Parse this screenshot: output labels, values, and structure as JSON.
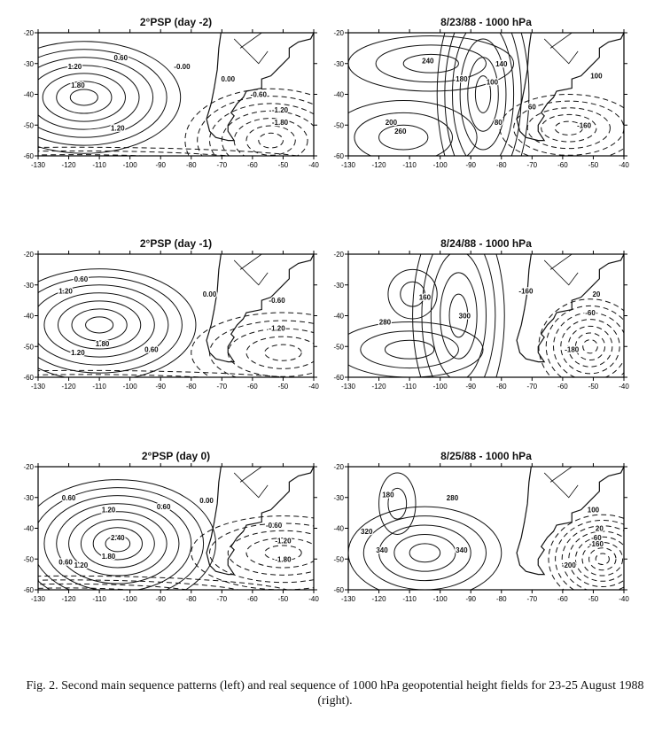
{
  "caption": "Fig. 2. Second main sequence patterns (left) and real sequence of 1000 hPa geopotential height fields for 23-25 August 1988 (right).",
  "chart_data": {
    "type": "contour-map",
    "xlim": [
      -130,
      -40
    ],
    "ylim": [
      -60,
      -20
    ],
    "xticks": [
      "-130",
      "-120",
      "-110",
      "-100",
      "-90",
      "-80",
      "-70",
      "-60",
      "-50",
      "-40"
    ],
    "yticks": [
      "-20",
      "-30",
      "-40",
      "-50",
      "-60"
    ],
    "panels": [
      {
        "title": "2°PSP (day -2)",
        "contours": [
          {
            "c": [
              -115,
              -41
            ],
            "n": 7,
            "d": [
              4.5,
              2.6
            ],
            "dashed": false
          },
          {
            "c": [
              -54,
              -55
            ],
            "n": 7,
            "d": [
              4,
              2.4
            ],
            "dashed": true
          },
          {
            "c": [
              -118,
              -62
            ],
            "n": 4,
            "d": [
              20,
              1.2
            ],
            "dashed": true
          }
        ],
        "labels": [
          {
            "t": "0.60",
            "at": [
              -103,
              -28
            ]
          },
          {
            "t": "1.20",
            "at": [
              -118,
              -31
            ]
          },
          {
            "t": "1.80",
            "at": [
              -117,
              -37
            ]
          },
          {
            "t": "1.20",
            "at": [
              -104,
              -51
            ]
          },
          {
            "t": "-0.00",
            "at": [
              -83,
              -31
            ]
          },
          {
            "t": "0.00",
            "at": [
              -68,
              -35
            ]
          },
          {
            "t": "-0.60",
            "at": [
              -58,
              -40
            ]
          },
          {
            "t": "-1.20",
            "at": [
              -51,
              -45
            ]
          },
          {
            "t": "-1.80",
            "at": [
              -51,
              -49
            ]
          }
        ]
      },
      {
        "title": "8/23/88 - 1000 hPa",
        "contours": [
          {
            "c": [
              -112,
              -54
            ],
            "n": 3,
            "d": [
              8,
              4
            ],
            "dashed": false
          },
          {
            "c": [
              -103,
              -30
            ],
            "n": 3,
            "d": [
              9,
              3
            ],
            "dashed": false
          },
          {
            "c": [
              -86,
              -40
            ],
            "n": 6,
            "d": [
              2.5,
              6
            ],
            "dashed": false
          },
          {
            "c": [
              -58,
              -51
            ],
            "n": 5,
            "d": [
              4.5,
              2.2
            ],
            "dashed": true
          }
        ],
        "labels": [
          {
            "t": "240",
            "at": [
              -104,
              -29
            ]
          },
          {
            "t": "180",
            "at": [
              -93,
              -35
            ]
          },
          {
            "t": "140",
            "at": [
              -80,
              -30
            ]
          },
          {
            "t": "100",
            "at": [
              -83,
              -36
            ]
          },
          {
            "t": "200",
            "at": [
              -116,
              -49
            ]
          },
          {
            "t": "260",
            "at": [
              -113,
              -52
            ]
          },
          {
            "t": "80",
            "at": [
              -81,
              -49
            ]
          },
          {
            "t": "60",
            "at": [
              -70,
              -44
            ]
          },
          {
            "t": "100",
            "at": [
              -49,
              -34
            ]
          },
          {
            "t": "-160",
            "at": [
              -53,
              -50
            ]
          }
        ]
      },
      {
        "title": "2°PSP (day -1)",
        "contours": [
          {
            "c": [
              -110,
              -43
            ],
            "n": 7,
            "d": [
              4.5,
              2.6
            ],
            "dashed": false
          },
          {
            "c": [
              -50,
              -52
            ],
            "n": 5,
            "d": [
              6,
              2.6
            ],
            "dashed": true
          },
          {
            "c": [
              -115,
              -63
            ],
            "n": 4,
            "d": [
              20,
              1.3
            ],
            "dashed": true
          }
        ],
        "labels": [
          {
            "t": "0.60",
            "at": [
              -116,
              -28
            ]
          },
          {
            "t": "1.20",
            "at": [
              -121,
              -32
            ]
          },
          {
            "t": "1.80",
            "at": [
              -109,
              -49
            ]
          },
          {
            "t": "1.20",
            "at": [
              -117,
              -52
            ]
          },
          {
            "t": "0.60",
            "at": [
              -93,
              -51
            ]
          },
          {
            "t": "0.00",
            "at": [
              -74,
              -33
            ]
          },
          {
            "t": "-0.60",
            "at": [
              -52,
              -35
            ]
          },
          {
            "t": "-1.20",
            "at": [
              -52,
              -44
            ]
          }
        ]
      },
      {
        "title": "8/24/88 - 1000 hPa",
        "contours": [
          {
            "c": [
              -110,
              -51
            ],
            "n": 3,
            "d": [
              8,
              3
            ],
            "dashed": false
          },
          {
            "c": [
              -109,
              -33
            ],
            "n": 2,
            "d": [
              4,
              4
            ],
            "dashed": false
          },
          {
            "c": [
              -94,
              -40
            ],
            "n": 5,
            "d": [
              3,
              7
            ],
            "dashed": false
          },
          {
            "c": [
              -51,
              -50
            ],
            "n": 7,
            "d": [
              2.4,
              2.2
            ],
            "dashed": true
          }
        ],
        "labels": [
          {
            "t": "160",
            "at": [
              -105,
              -34
            ]
          },
          {
            "t": "280",
            "at": [
              -118,
              -42
            ]
          },
          {
            "t": "300",
            "at": [
              -92,
              -40
            ]
          },
          {
            "t": "-160",
            "at": [
              -72,
              -32
            ]
          },
          {
            "t": "20",
            "at": [
              -49,
              -33
            ]
          },
          {
            "t": "-60",
            "at": [
              -51,
              -39
            ]
          },
          {
            "t": "-180",
            "at": [
              -57,
              -51
            ]
          }
        ]
      },
      {
        "title": "2°PSP (day 0)",
        "contours": [
          {
            "c": [
              -104,
              -45
            ],
            "n": 8,
            "d": [
              4,
              2.6
            ],
            "dashed": false
          },
          {
            "c": [
              -50,
              -48
            ],
            "n": 5,
            "d": [
              6,
              2.4
            ],
            "dashed": true
          },
          {
            "c": [
              -120,
              -62
            ],
            "n": 5,
            "d": [
              15,
              1.3
            ],
            "dashed": true
          }
        ],
        "labels": [
          {
            "t": "0.60",
            "at": [
              -120,
              -30
            ]
          },
          {
            "t": "1.20",
            "at": [
              -107,
              -34
            ]
          },
          {
            "t": "2.40",
            "at": [
              -104,
              -43
            ]
          },
          {
            "t": "1.80",
            "at": [
              -107,
              -49
            ]
          },
          {
            "t": "1.20",
            "at": [
              -116,
              -52
            ]
          },
          {
            "t": "0.60",
            "at": [
              -121,
              -51
            ]
          },
          {
            "t": "0.60",
            "at": [
              -89,
              -33
            ]
          },
          {
            "t": "0.00",
            "at": [
              -75,
              -31
            ]
          },
          {
            "t": "-0.60",
            "at": [
              -53,
              -39
            ]
          },
          {
            "t": "-1.20",
            "at": [
              -50,
              -44
            ]
          },
          {
            "t": "-1.80",
            "at": [
              -50,
              -50
            ]
          }
        ]
      },
      {
        "title": "8/25/88 - 1000 hPa",
        "contours": [
          {
            "c": [
              -105,
              -48
            ],
            "n": 5,
            "d": [
              5,
              3
            ],
            "dashed": false
          },
          {
            "c": [
              -114,
              -32
            ],
            "n": 2,
            "d": [
              3,
              5
            ],
            "dashed": false
          },
          {
            "c": [
              -47,
              -50
            ],
            "n": 8,
            "d": [
              2.2,
              1.8
            ],
            "dashed": true
          }
        ],
        "labels": [
          {
            "t": "180",
            "at": [
              -117,
              -29
            ]
          },
          {
            "t": "280",
            "at": [
              -96,
              -30
            ]
          },
          {
            "t": "320",
            "at": [
              -124,
              -41
            ]
          },
          {
            "t": "340",
            "at": [
              -119,
              -47
            ]
          },
          {
            "t": "340",
            "at": [
              -93,
              -47
            ]
          },
          {
            "t": "100",
            "at": [
              -50,
              -34
            ]
          },
          {
            "t": "20",
            "at": [
              -48,
              -40
            ]
          },
          {
            "t": "-60",
            "at": [
              -49,
              -43
            ]
          },
          {
            "t": "-160",
            "at": [
              -49,
              -45
            ]
          },
          {
            "t": "-200",
            "at": [
              -58,
              -52
            ]
          }
        ]
      }
    ]
  }
}
